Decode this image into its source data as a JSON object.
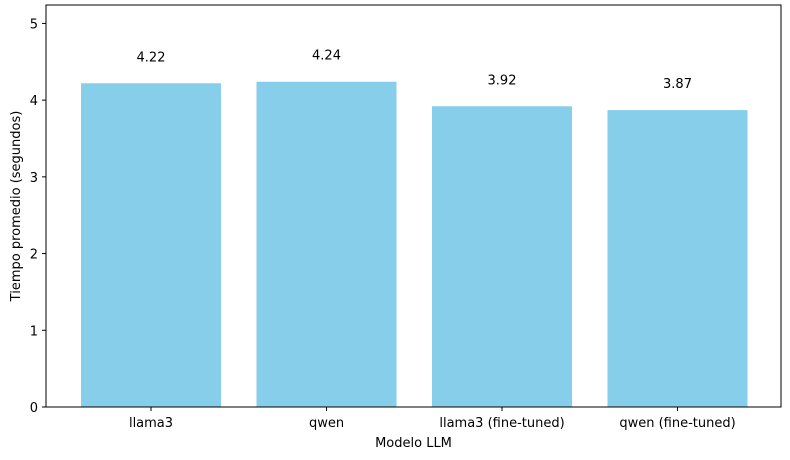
{
  "chart_data": {
    "type": "bar",
    "title": "",
    "xlabel": "Modelo LLM",
    "ylabel": "Tiempo promedio (segundos)",
    "categories": [
      "llama3",
      "qwen",
      "llama3 (fine-tuned)",
      "qwen (fine-tuned)"
    ],
    "values": [
      4.22,
      4.24,
      3.92,
      3.87
    ],
    "data_labels": [
      "4.22",
      "4.24",
      "3.92",
      "3.87"
    ],
    "ylim": [
      0,
      5.24
    ],
    "yticks": [
      0,
      1,
      2,
      3,
      4,
      5
    ],
    "grid": false,
    "bar_color": "#87ceeb"
  }
}
